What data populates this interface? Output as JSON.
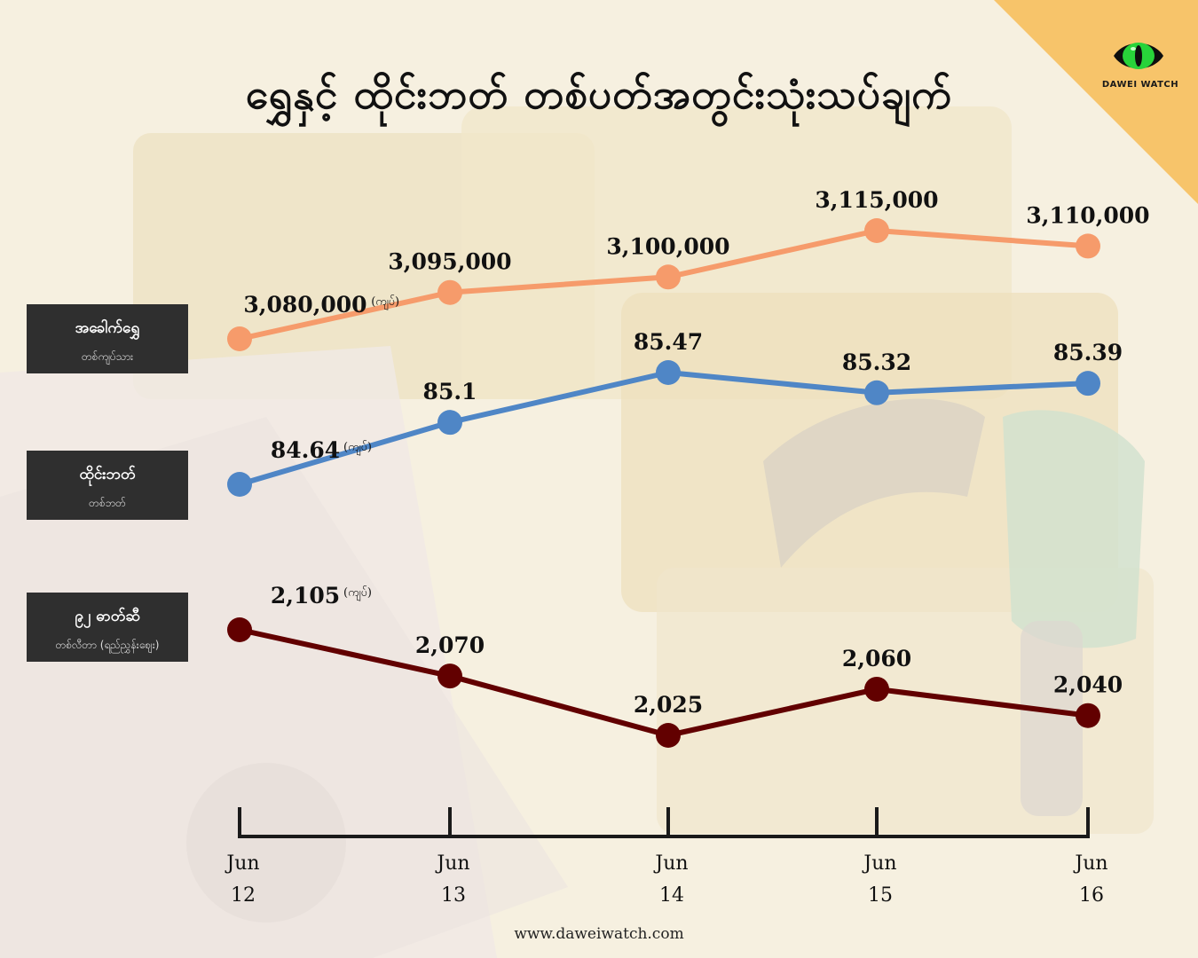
{
  "title": "ရွှေနှင့် ထိုင်းဘတ် တစ်ပတ်အတွင်းသုံးသပ်ချက်",
  "brand": {
    "name": "DAWEI WATCH",
    "logo_icon": "green-eye-icon"
  },
  "footer": {
    "url": "www.daweiwatch.com"
  },
  "series_labels": [
    {
      "name": "အခေါက်ရွှေ",
      "unit": "တစ်ကျပ်သား"
    },
    {
      "name": "ထိုင်းဘတ်",
      "unit": "တစ်ဘတ်"
    },
    {
      "name": "၉၂ ဓာတ်ဆီ",
      "unit": "တစ်လီတာ (ရည်ညွှန်းဈေး)"
    }
  ],
  "currency_note": "(ကျပ်)",
  "colors": {
    "gold": "#f69b6b",
    "baht": "#4f86c6",
    "fuel": "#620000",
    "axis": "#1a1a1a"
  },
  "chart_data": {
    "type": "line",
    "categories": [
      "Jun 12",
      "Jun 13",
      "Jun 14",
      "Jun 15",
      "Jun 16"
    ],
    "x_month": "Jun",
    "x_days": [
      "12",
      "13",
      "14",
      "15",
      "16"
    ],
    "series": [
      {
        "name": "အခေါက်ရွှေ",
        "values": [
          3080000,
          3095000,
          3100000,
          3115000,
          3110000
        ],
        "labels": [
          "3,080,000",
          "3,095,000",
          "3,100,000",
          "3,115,000",
          "3,110,000"
        ]
      },
      {
        "name": "ထိုင်းဘတ်",
        "values": [
          84.64,
          85.1,
          85.47,
          85.32,
          85.39
        ],
        "labels": [
          "84.64",
          "85.1",
          "85.47",
          "85.32",
          "85.39"
        ]
      },
      {
        "name": "၉၂ ဓာတ်ဆီ",
        "values": [
          2105,
          2070,
          2025,
          2060,
          2040
        ],
        "labels": [
          "2,105",
          "2,070",
          "2,025",
          "2,060",
          "2,040"
        ]
      }
    ]
  }
}
